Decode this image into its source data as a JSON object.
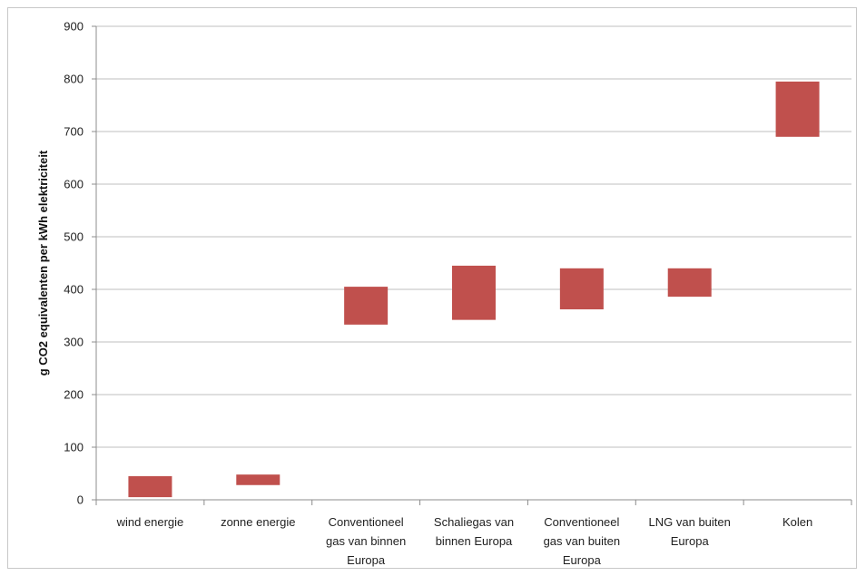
{
  "chart_data": {
    "type": "bar",
    "subtype": "floating-range",
    "title": "",
    "xlabel": "",
    "ylabel": "g CO2 equivalenten per kWh elektriciteit",
    "ylim": [
      0,
      900
    ],
    "yticks": [
      0,
      100,
      200,
      300,
      400,
      500,
      600,
      700,
      800,
      900
    ],
    "grid": true,
    "legend": "none",
    "bar_color": "#C0504D",
    "categories": [
      [
        "wind energie"
      ],
      [
        "zonne energie"
      ],
      [
        "Conventioneel",
        "gas van binnen",
        "Europa"
      ],
      [
        "Schaliegas van",
        "binnen Europa"
      ],
      [
        "Conventioneel",
        "gas van buiten",
        "Europa"
      ],
      [
        "LNG van buiten",
        "Europa"
      ],
      [
        "Kolen"
      ]
    ],
    "ranges": [
      [
        5,
        45
      ],
      [
        28,
        48
      ],
      [
        333,
        405
      ],
      [
        342,
        445
      ],
      [
        362,
        440
      ],
      [
        386,
        440
      ],
      [
        690,
        795
      ]
    ]
  }
}
